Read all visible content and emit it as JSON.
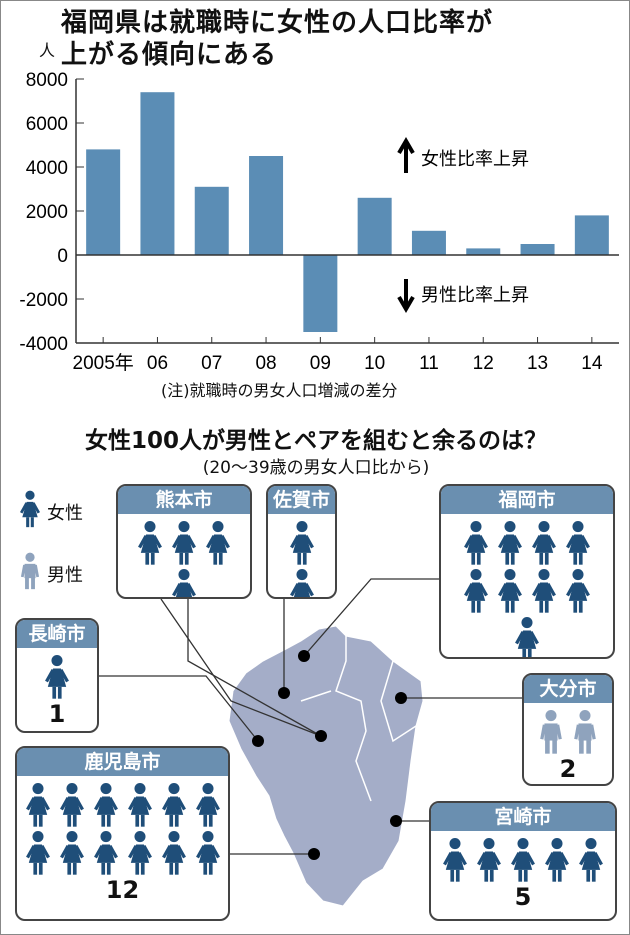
{
  "title": "福岡県は就職時に女性の人口比率が上がる傾向にある",
  "title_lines": [
    "福岡県は就職時に女性の人口比率が",
    "上がる傾向にある"
  ],
  "chart_data": {
    "type": "bar",
    "unit_label": "人",
    "categories": [
      "2005年",
      "06",
      "07",
      "08",
      "09",
      "10",
      "11",
      "12",
      "13",
      "14"
    ],
    "values": [
      4800,
      7400,
      3100,
      4500,
      -3500,
      2600,
      1100,
      300,
      500,
      1800
    ],
    "ylim": [
      -4000,
      8000
    ],
    "yticks": [
      "8000",
      "6000",
      "4000",
      "2000",
      "0",
      "-2000",
      "-4000"
    ],
    "bar_color": "#5b8db5",
    "annotations": {
      "up": "女性比率上昇",
      "down": "男性比率上昇"
    },
    "note": "(注)就職時の男女人口増減の差分",
    "grid": false
  },
  "section2": {
    "title": "女性100人が男性とペアを組むと余るのは？",
    "note": "(20〜39歳の男女人口比から)",
    "legend": {
      "female": "女性",
      "male": "男性"
    },
    "colors": {
      "female": "#1f4e79",
      "male": "#8fa3bd",
      "header": "#6a8fb0",
      "map": "#a4adc8"
    },
    "cities": [
      {
        "name": "熊本市",
        "count": "4",
        "n": 4,
        "sex": "female"
      },
      {
        "name": "佐賀市",
        "count": "2",
        "n": 2,
        "sex": "female"
      },
      {
        "name": "福岡市",
        "count": "9人",
        "n": 9,
        "sex": "female"
      },
      {
        "name": "長崎市",
        "count": "1",
        "n": 1,
        "sex": "female"
      },
      {
        "name": "大分市",
        "count": "2",
        "n": 2,
        "sex": "male"
      },
      {
        "name": "鹿児島市",
        "count": "12",
        "n": 12,
        "sex": "female"
      },
      {
        "name": "宮崎市",
        "count": "5",
        "n": 5,
        "sex": "female"
      }
    ]
  }
}
